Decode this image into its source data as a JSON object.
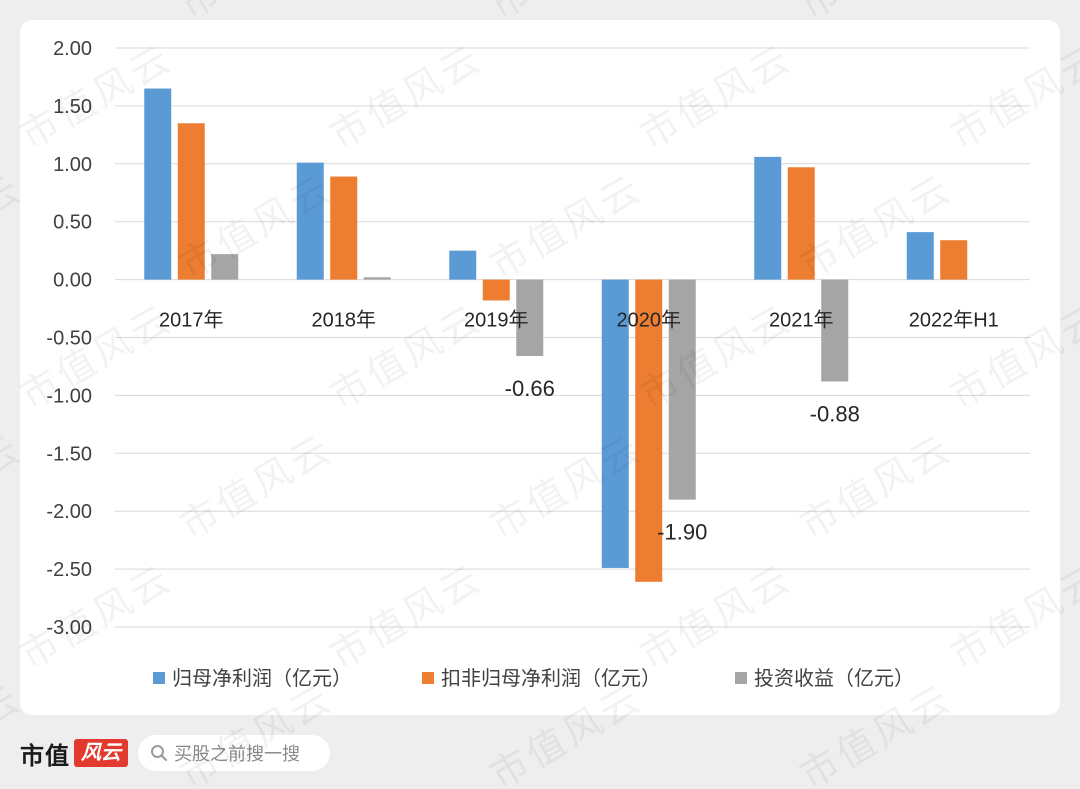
{
  "watermark": "市值风云",
  "chart_data": {
    "type": "bar",
    "categories": [
      "2017年",
      "2018年",
      "2019年",
      "2020年",
      "2021年",
      "2022年H1"
    ],
    "series": [
      {
        "name": "归母净利润（亿元）",
        "color": "#5B9BD5",
        "values": [
          1.65,
          1.01,
          0.25,
          -2.49,
          1.06,
          0.41
        ]
      },
      {
        "name": "扣非归母净利润（亿元）",
        "color": "#ED7D31",
        "values": [
          1.35,
          0.89,
          -0.18,
          -2.61,
          0.97,
          0.34
        ]
      },
      {
        "name": "投资收益（亿元）",
        "color": "#A5A5A5",
        "values": [
          0.22,
          0.02,
          -0.66,
          -1.9,
          -0.88,
          null
        ],
        "labels": [
          null,
          null,
          "-0.66",
          "-1.90",
          "-0.88",
          null
        ]
      }
    ],
    "ylim": [
      -3,
      2
    ],
    "yticks": [
      "2.00",
      "1.50",
      "1.00",
      "0.50",
      "0.00",
      "-0.50",
      "-1.00",
      "-1.50",
      "-2.00",
      "-2.50",
      "-3.00"
    ],
    "grid": true,
    "legend": "bottom"
  },
  "footer": {
    "brand": "市值",
    "logo": "风云",
    "logo_color": "#e33a2f",
    "search_placeholder": "买股之前搜一搜",
    "search_icon": "search-icon"
  }
}
